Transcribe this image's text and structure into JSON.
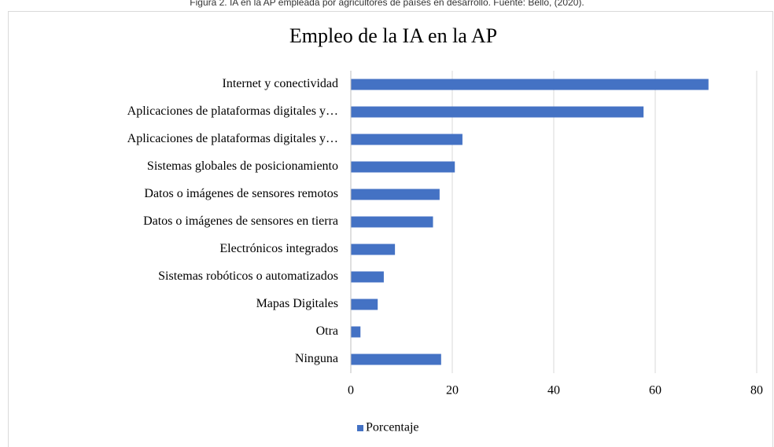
{
  "caption": "Figura 2. IA en la AP empleada por agricultores de países en desarrollo. Fuente: Bello, (2020).",
  "chart_data": {
    "type": "barh",
    "title": "Empleo de la IA en la AP",
    "categories": [
      "Internet y conectividad",
      "Aplicaciones de plataformas digitales y…",
      "Aplicaciones de plataformas digitales y…",
      "Sistemas globales de posicionamiento",
      "Datos o imágenes de sensores remotos",
      "Datos o imágenes de sensores en tierra",
      "Electrónicos integrados",
      "Sistemas robóticos o automatizados",
      "Mapas Digitales",
      "Otra",
      "Ninguna"
    ],
    "series": [
      {
        "name": "Porcentaje",
        "color": "#4472c4",
        "values": [
          70.5,
          57.7,
          22,
          20.5,
          17.5,
          16.2,
          8.7,
          6.5,
          5.3,
          1.9,
          17.8
        ]
      }
    ],
    "xlim": [
      0,
      80
    ],
    "xticks": [
      0,
      20,
      40,
      60,
      80
    ],
    "grid": true,
    "legend": "bottom"
  }
}
